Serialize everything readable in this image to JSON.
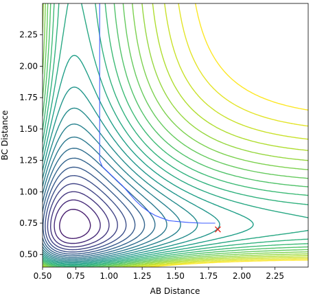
{
  "chart_data": {
    "type": "contour",
    "title": "",
    "xlabel": "AB Distance",
    "ylabel": "BC Distance",
    "xlim": [
      0.5,
      2.5
    ],
    "ylim": [
      0.4,
      2.5
    ],
    "xticks": [
      "0.50",
      "0.75",
      "1.00",
      "1.25",
      "1.50",
      "1.75",
      "2.00",
      "2.25"
    ],
    "yticks": [
      "0.50",
      "0.75",
      "1.00",
      "1.25",
      "1.50",
      "1.75",
      "2.00",
      "2.25"
    ],
    "grid": false,
    "legend": "none",
    "colormap": "viridis",
    "colors": {
      "contour_low": "#440154",
      "contour_high": "#fde725",
      "trajectory": "#3b5bff",
      "marker": "#e8251c"
    },
    "trajectory": {
      "x": [
        0.93,
        0.93,
        0.95,
        1.0,
        1.05,
        1.1,
        1.15,
        1.2,
        1.25,
        1.3,
        1.35,
        1.4,
        1.45,
        1.5,
        1.6,
        1.7,
        1.8
      ],
      "y": [
        2.5,
        1.25,
        1.2,
        1.15,
        1.1,
        1.05,
        0.99,
        0.93,
        0.88,
        0.84,
        0.81,
        0.79,
        0.77,
        0.765,
        0.755,
        0.75,
        0.75
      ]
    },
    "end_marker": {
      "x": 1.82,
      "y": 0.7,
      "symbol": "x"
    }
  }
}
